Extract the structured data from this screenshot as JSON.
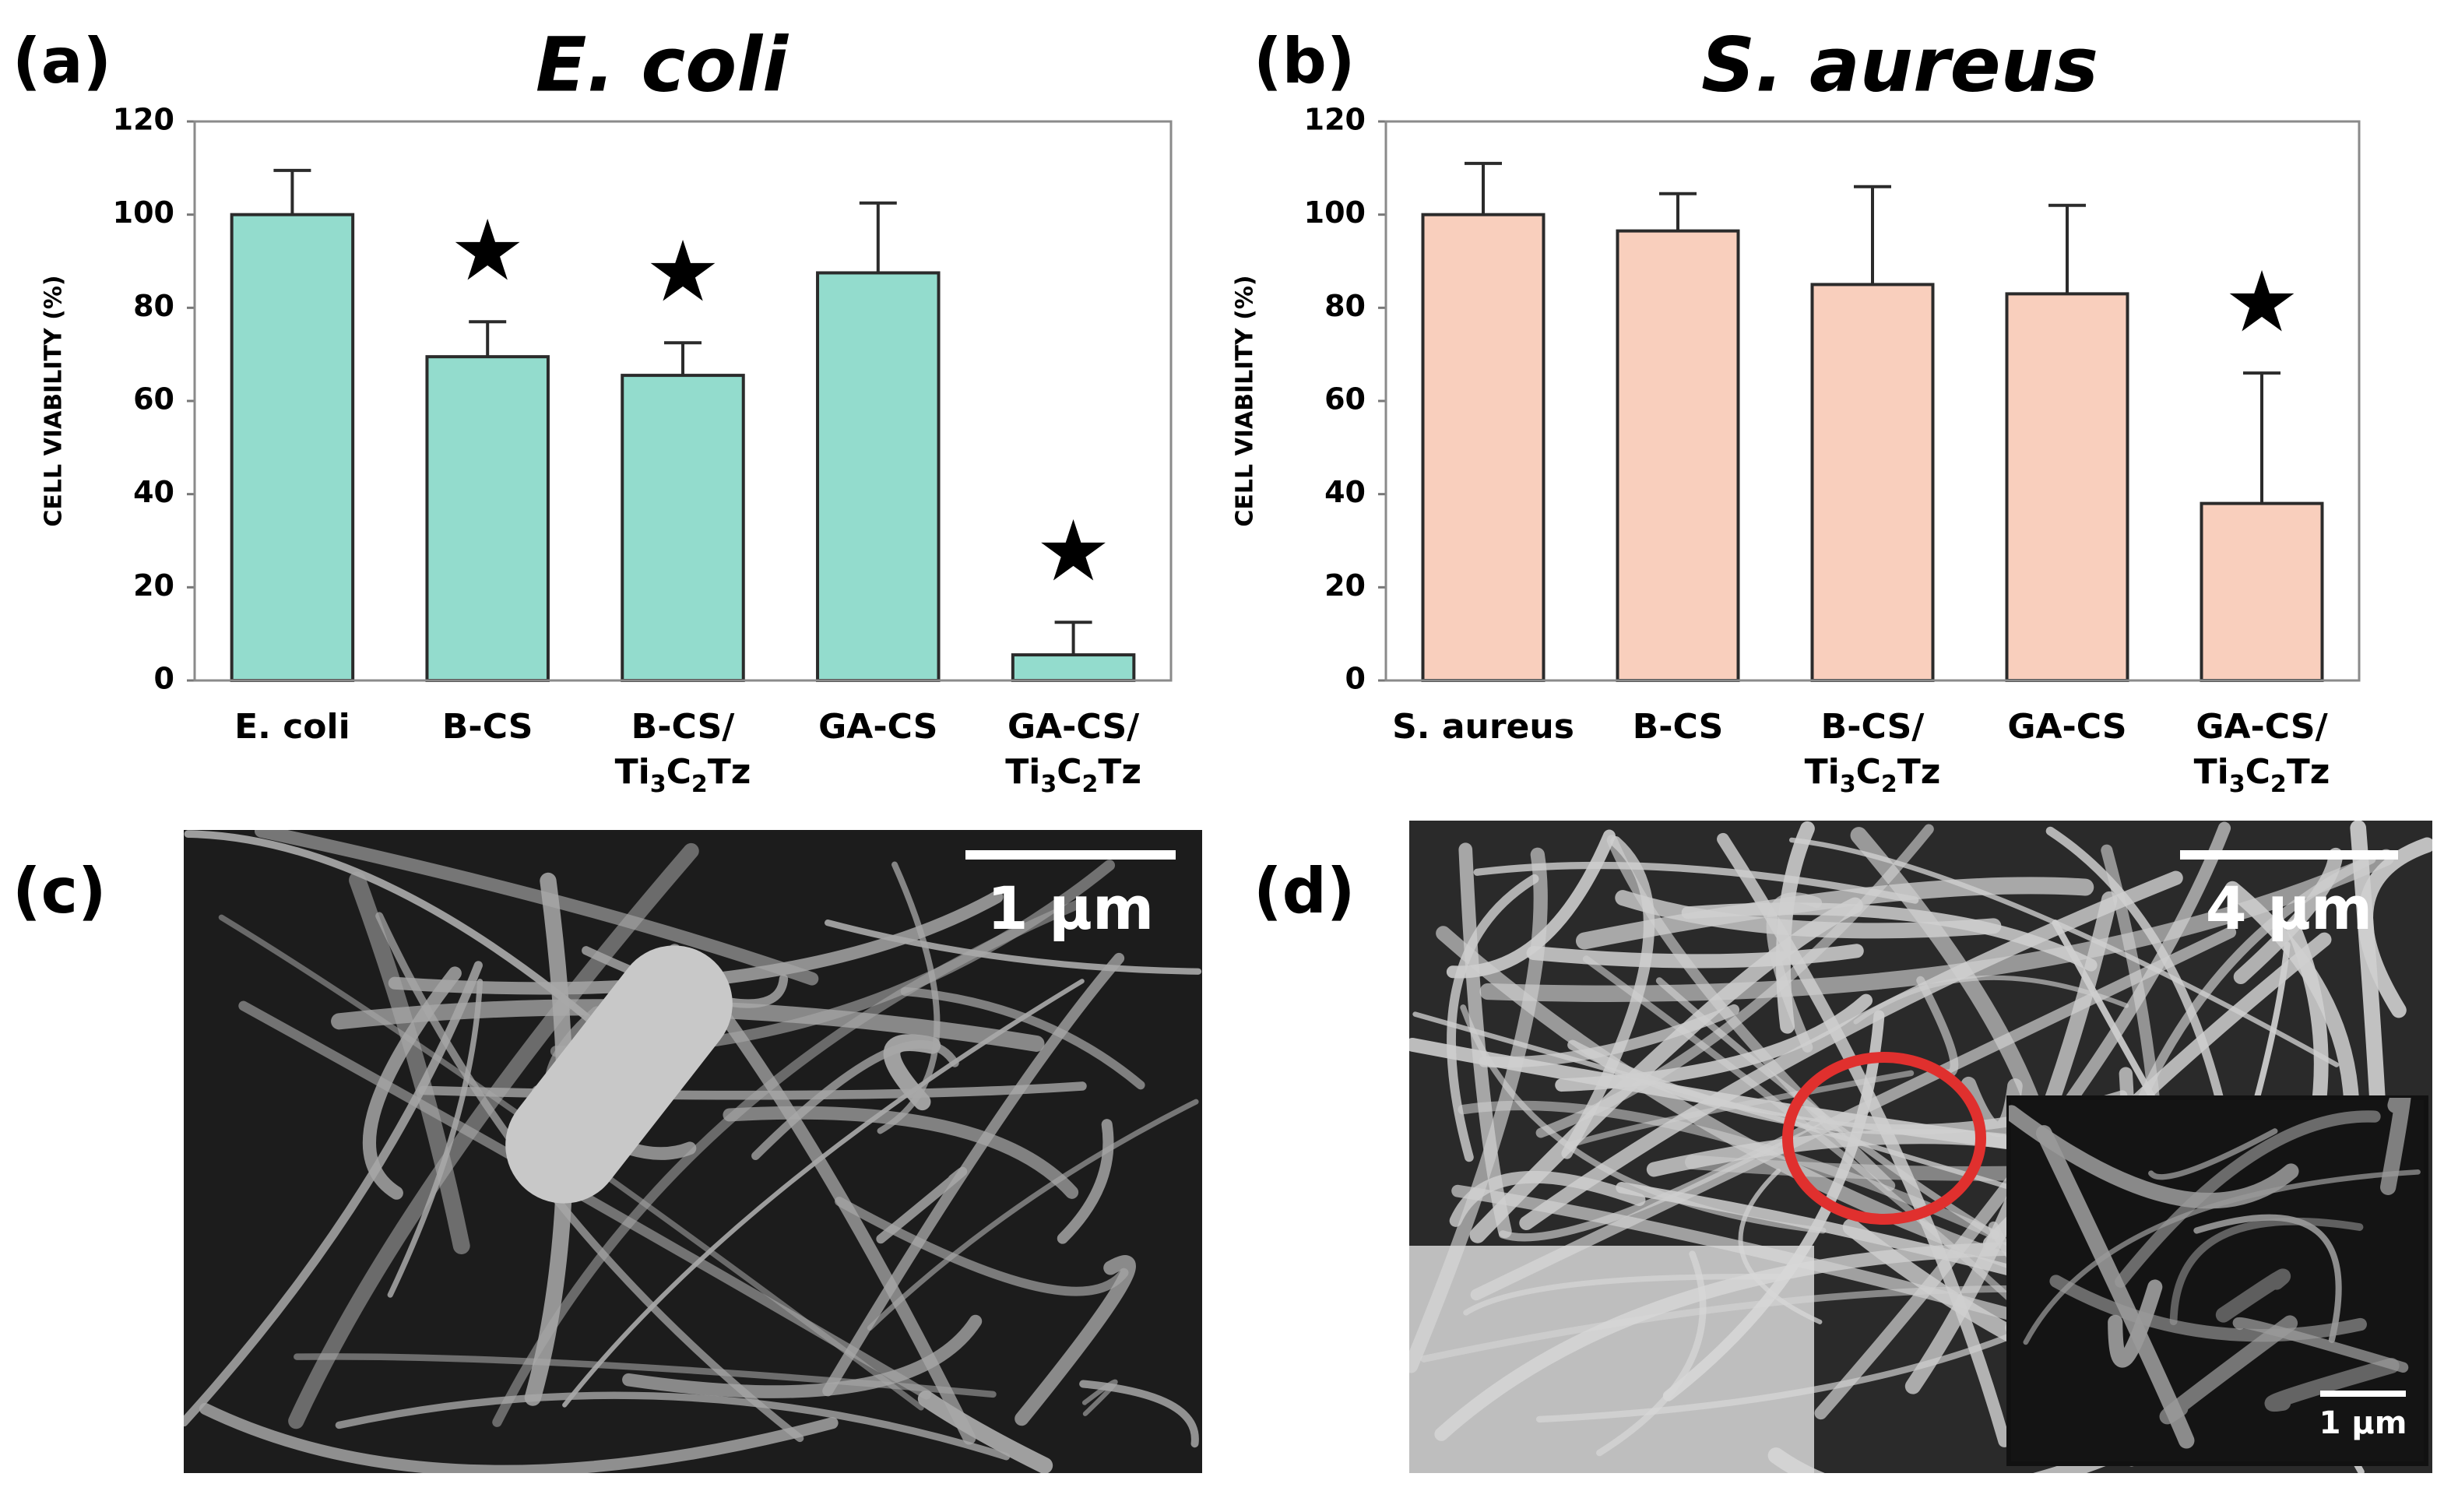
{
  "chart_data": [
    {
      "type": "bar",
      "panel_label": "(a)",
      "title": "E. coli",
      "ylabel": "CELL VIABILITY (%)",
      "categories": [
        "E. coli",
        "B-CS",
        "B-CS/Ti3C2Tz",
        "GA-CS",
        "GA-CS/Ti3C2Tz"
      ],
      "values": [
        100,
        69.5,
        65.5,
        87.5,
        5.5
      ],
      "errors": [
        9.5,
        7.5,
        7,
        15,
        7
      ],
      "annotations": [
        null,
        "★",
        "★",
        null,
        "★"
      ],
      "color": "#93dccd",
      "ylim": [
        0,
        120
      ],
      "yticks": [
        0,
        20,
        40,
        60,
        80,
        100,
        120
      ]
    },
    {
      "type": "bar",
      "panel_label": "(b)",
      "title": "S. aureus",
      "ylabel": "CELL VIABILITY (%)",
      "categories": [
        "S. aureus",
        "B-CS",
        "B-CS/Ti3C2Tz",
        "GA-CS",
        "GA-CS/Ti3C2Tz"
      ],
      "values": [
        100,
        96.5,
        85,
        83,
        38
      ],
      "errors": [
        11,
        8,
        21,
        19,
        28
      ],
      "annotations": [
        null,
        null,
        null,
        null,
        "★"
      ],
      "color": "#f9cfbd",
      "ylim": [
        0,
        120
      ],
      "yticks": [
        0,
        20,
        40,
        60,
        80,
        100,
        120
      ]
    }
  ],
  "images": [
    {
      "panel_label": "(c)",
      "scale_bar": "1 µm"
    },
    {
      "panel_label": "(d)",
      "scale_bar": "4 µm",
      "inset_scale_bar": "1 µm"
    }
  ]
}
